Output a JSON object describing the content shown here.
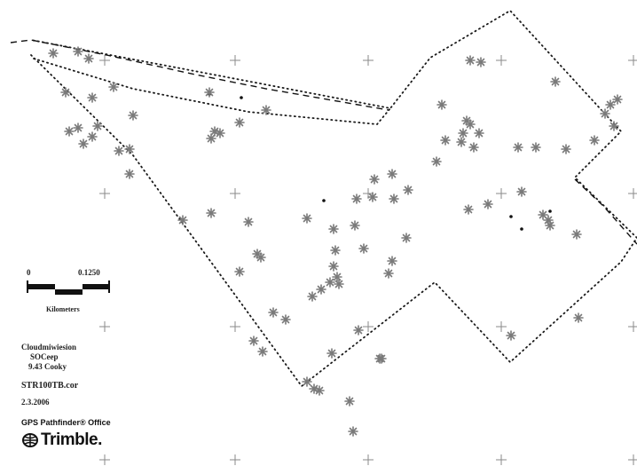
{
  "map": {
    "scale_bar": {
      "start_label": "0",
      "end_label": "0.1250",
      "unit_label": "Kilometers"
    },
    "info": {
      "lines": [
        "Cloudmiwiesion",
        "SOCeep",
        "9.43 Cooky"
      ],
      "filename": "STR100TB.cor",
      "date": "2.3.2006"
    },
    "branding": {
      "software": "GPS Pathfinder® Office",
      "company": "Trimble."
    },
    "colors": {
      "background": "#ffffff",
      "boundary": "#1a1a1a",
      "feature_marker": "#7a7a7a",
      "grid_cross": "#8a8a8a"
    },
    "icons": {
      "feature_marker": "asterisk-icon",
      "grid_tick": "plus-icon",
      "brand_logo": "trimble-logo"
    }
  }
}
